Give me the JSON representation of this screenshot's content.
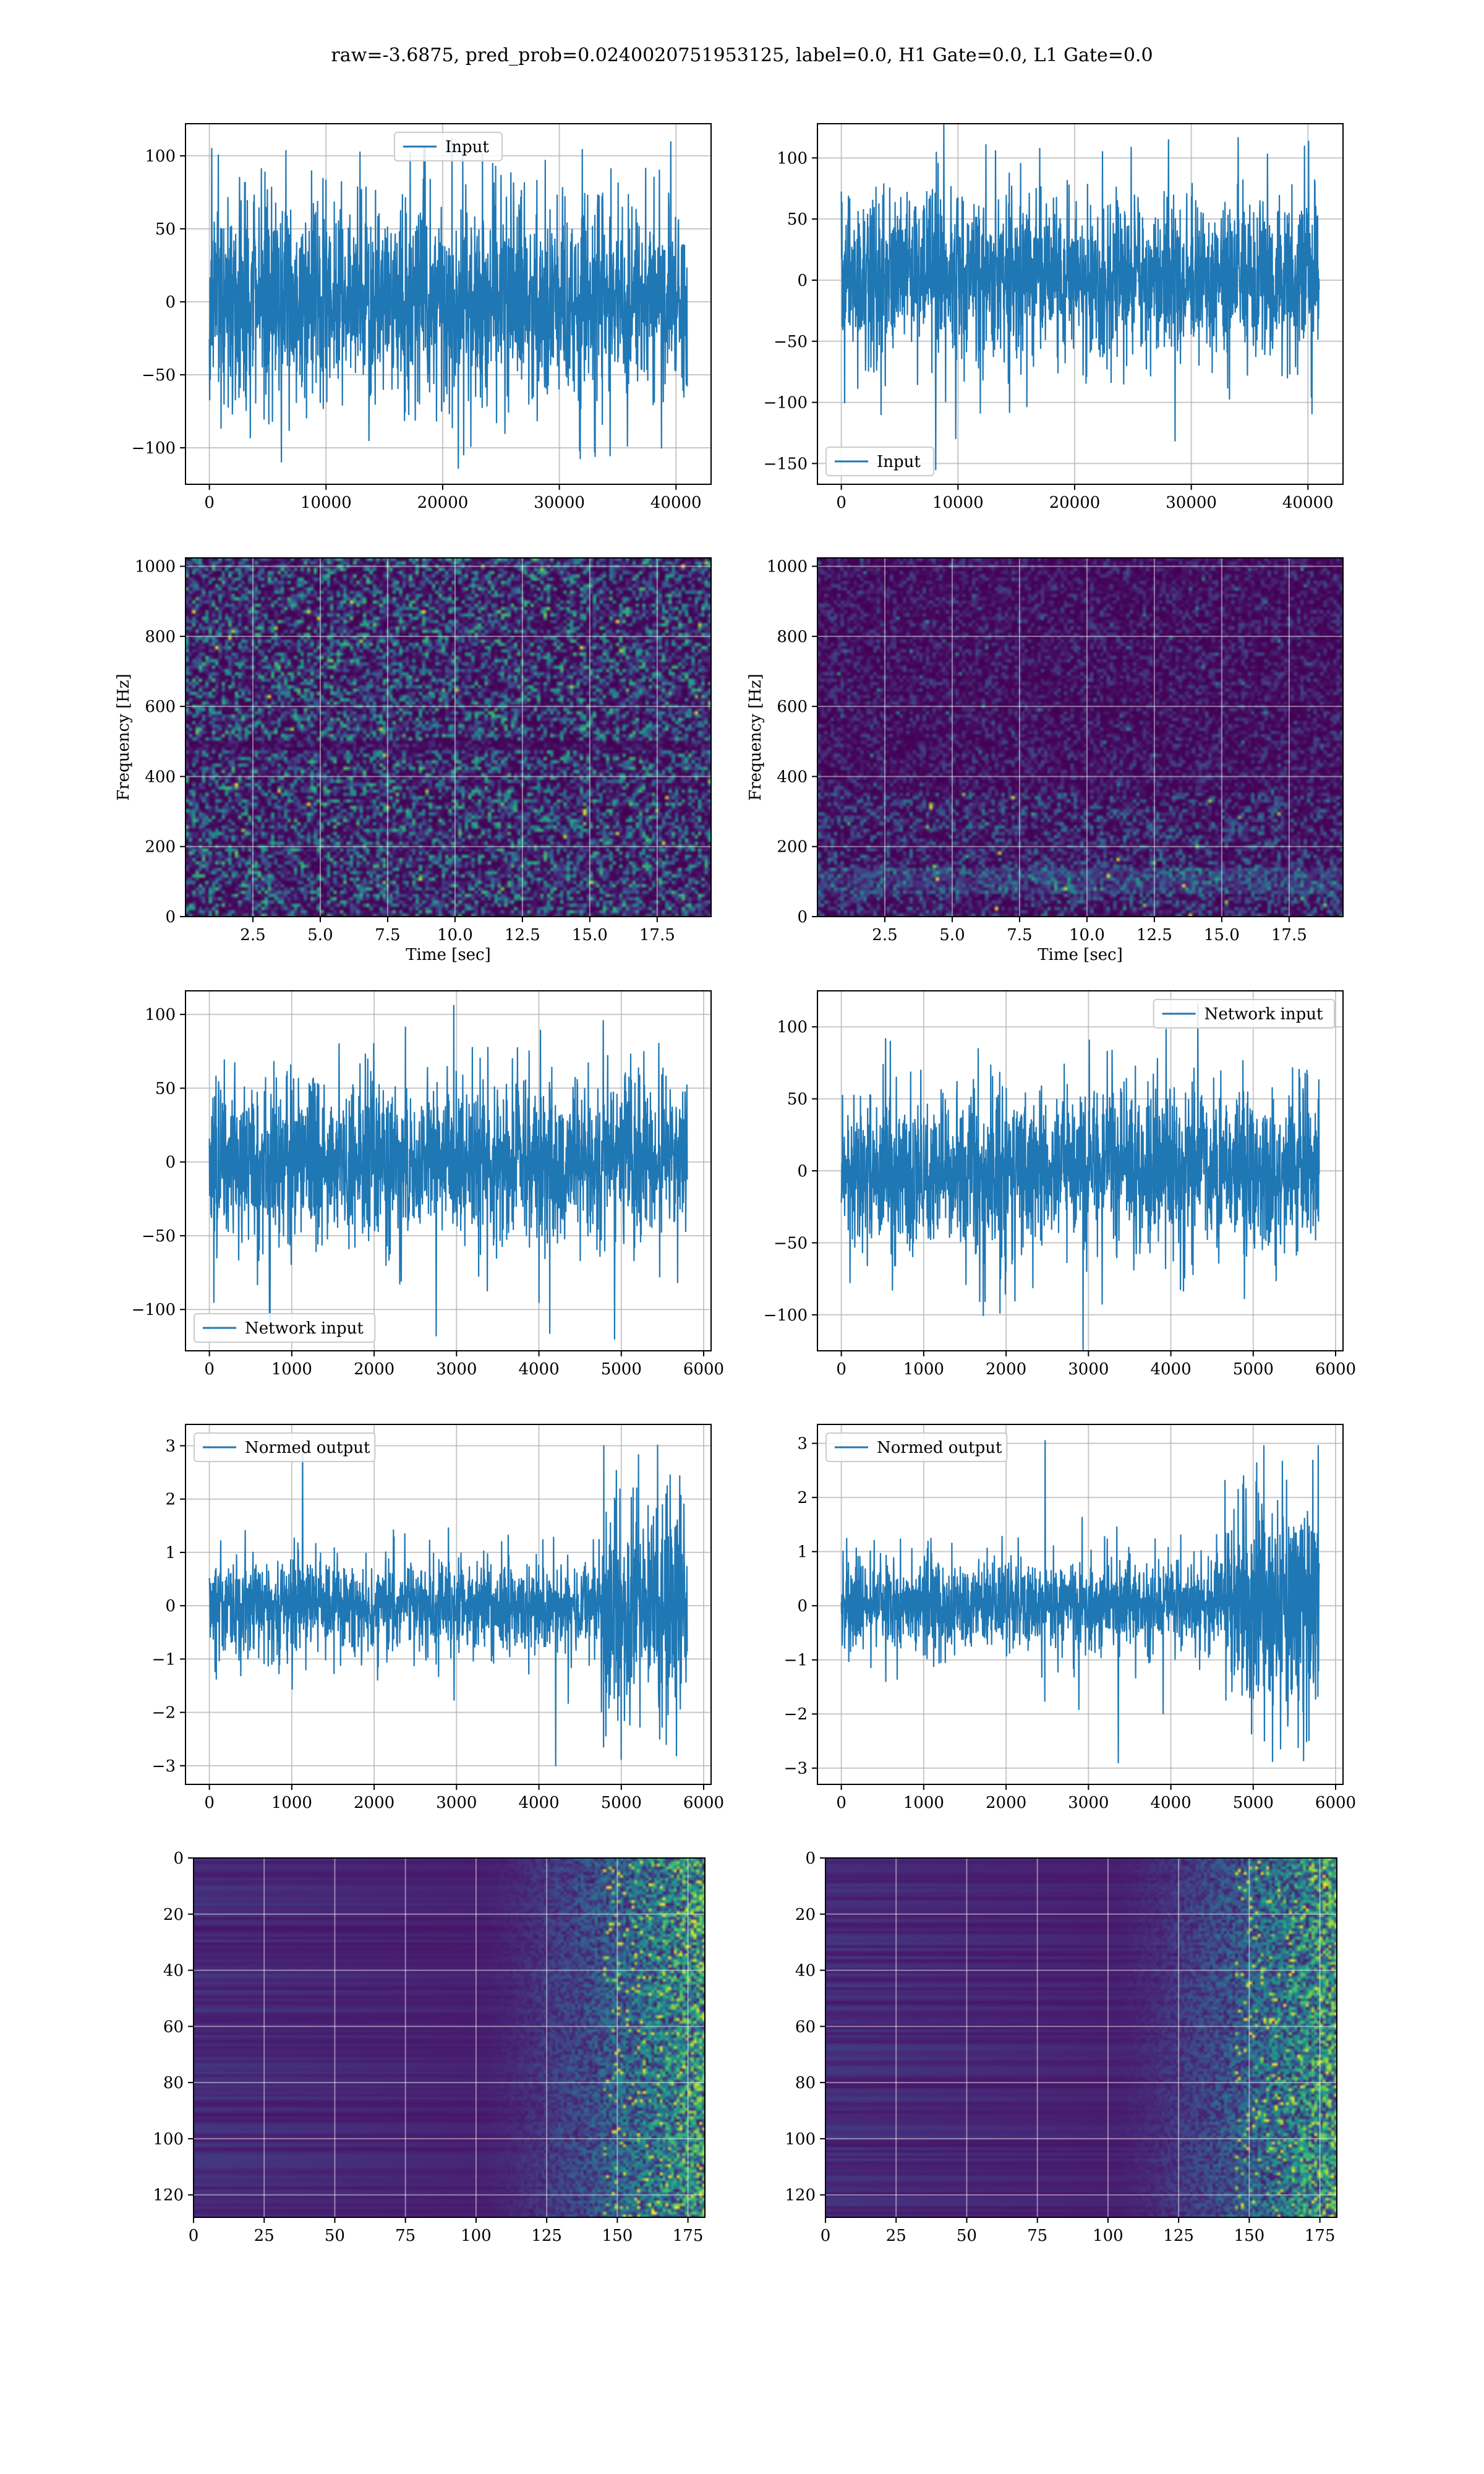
{
  "figure_title": "raw=-3.6875, pred_prob=0.0240020751953125, label=0.0, H1 Gate=0.0, L1 Gate=0.0",
  "colors": {
    "line": "#1f77b4",
    "grid": "#b0b0b0"
  },
  "chart_data": [
    {
      "id": "h1-input",
      "type": "line",
      "title": "",
      "xlabel": "",
      "ylabel": "",
      "xlim": [
        -2048,
        43008
      ],
      "ylim": [
        -125,
        122
      ],
      "xticks": [
        0,
        10000,
        20000,
        30000,
        40000
      ],
      "yticks": [
        -100,
        -50,
        0,
        50,
        100
      ],
      "series": [
        {
          "name": "Input",
          "n_samples": 40960,
          "x_range": [
            0,
            40960
          ],
          "spread": 38,
          "max": 112,
          "min": -114
        }
      ],
      "legend": "upper center",
      "grid": true
    },
    {
      "id": "l1-input",
      "type": "line",
      "title": "",
      "xlabel": "",
      "ylabel": "",
      "xlim": [
        -2048,
        43008
      ],
      "ylim": [
        -167,
        128
      ],
      "xticks": [
        0,
        10000,
        20000,
        30000,
        40000
      ],
      "yticks": [
        -150,
        -100,
        -50,
        0,
        50,
        100
      ],
      "series": [
        {
          "name": "Input",
          "n_samples": 40960,
          "x_range": [
            0,
            40960
          ],
          "spread": 36,
          "max": 127,
          "min": -155
        }
      ],
      "legend": "lower left",
      "grid": true
    },
    {
      "id": "h1-spectrogram",
      "type": "heatmap",
      "title": "",
      "xlabel": "Time [sec]",
      "ylabel": "Frequency [Hz]",
      "xlim": [
        0,
        19.5
      ],
      "ylim": [
        0,
        1024
      ],
      "xticks": [
        2.5,
        5.0,
        7.5,
        10.0,
        12.5,
        15.0,
        17.5
      ],
      "yticks": [
        0,
        200,
        400,
        600,
        800,
        1000
      ],
      "xticklabels": [
        "2.5",
        "5.0",
        "7.5",
        "10.0",
        "12.5",
        "15.0",
        "17.5"
      ],
      "colormap": "viridis",
      "grid": true
    },
    {
      "id": "l1-spectrogram",
      "type": "heatmap",
      "title": "",
      "xlabel": "Time [sec]",
      "ylabel": "Frequency [Hz]",
      "xlim": [
        0,
        19.5
      ],
      "ylim": [
        0,
        1024
      ],
      "xticks": [
        2.5,
        5.0,
        7.5,
        10.0,
        12.5,
        15.0,
        17.5
      ],
      "yticks": [
        0,
        200,
        400,
        600,
        800,
        1000
      ],
      "xticklabels": [
        "2.5",
        "5.0",
        "7.5",
        "10.0",
        "12.5",
        "15.0",
        "17.5"
      ],
      "colormap": "viridis",
      "grid": true
    },
    {
      "id": "h1-network-input",
      "type": "line",
      "title": "",
      "xlabel": "",
      "ylabel": "",
      "xlim": [
        -290,
        6090
      ],
      "ylim": [
        -128,
        116
      ],
      "xticks": [
        0,
        1000,
        2000,
        3000,
        4000,
        5000,
        6000
      ],
      "yticks": [
        -100,
        -50,
        0,
        50,
        100
      ],
      "series": [
        {
          "name": "Network input",
          "n_samples": 5800,
          "x_range": [
            0,
            5800
          ],
          "spread": 30,
          "max": 106,
          "min": -120
        }
      ],
      "legend": "lower left",
      "grid": true
    },
    {
      "id": "l1-network-input",
      "type": "line",
      "title": "",
      "xlabel": "",
      "ylabel": "",
      "xlim": [
        -290,
        6090
      ],
      "ylim": [
        -125,
        125
      ],
      "xticks": [
        0,
        1000,
        2000,
        3000,
        4000,
        5000,
        6000
      ],
      "yticks": [
        -100,
        -50,
        0,
        50,
        100
      ],
      "series": [
        {
          "name": "Network input",
          "n_samples": 5800,
          "x_range": [
            0,
            5800
          ],
          "spread": 30,
          "max": 116,
          "min": -124
        }
      ],
      "legend": "upper right",
      "grid": true
    },
    {
      "id": "h1-normed-output",
      "type": "line",
      "title": "",
      "xlabel": "",
      "ylabel": "",
      "xlim": [
        -290,
        6090
      ],
      "ylim": [
        -3.35,
        3.4
      ],
      "xticks": [
        0,
        1000,
        2000,
        3000,
        4000,
        5000,
        6000
      ],
      "yticks": [
        -3,
        -2,
        -1,
        0,
        1,
        2,
        3
      ],
      "series": [
        {
          "name": "Normed output",
          "n_samples": 5800,
          "x_range": [
            0,
            5800
          ],
          "spread": 0.45,
          "burst_start": 4750,
          "burst_spread": 1.15,
          "max": 3.1,
          "min": -3.0
        }
      ],
      "legend": "upper left",
      "grid": true
    },
    {
      "id": "l1-normed-output",
      "type": "line",
      "title": "",
      "xlabel": "",
      "ylabel": "",
      "xlim": [
        -290,
        6090
      ],
      "ylim": [
        -3.3,
        3.35
      ],
      "xticks": [
        0,
        1000,
        2000,
        3000,
        4000,
        5000,
        6000
      ],
      "yticks": [
        -3,
        -2,
        -1,
        0,
        1,
        2,
        3
      ],
      "series": [
        {
          "name": "Normed output",
          "n_samples": 5800,
          "x_range": [
            0,
            5800
          ],
          "spread": 0.45,
          "burst_start": 4650,
          "burst_spread": 1.1,
          "max": 3.05,
          "min": -2.9
        }
      ],
      "legend": "upper left",
      "grid": true
    },
    {
      "id": "h1-feature-map",
      "type": "heatmap",
      "title": "",
      "xlabel": "",
      "ylabel": "",
      "xlim": [
        0,
        181
      ],
      "ylim": [
        128,
        0
      ],
      "xticks": [
        0,
        25,
        50,
        75,
        100,
        125,
        150,
        175
      ],
      "yticks": [
        0,
        20,
        40,
        60,
        80,
        100,
        120
      ],
      "colormap": "viridis",
      "grid": true
    },
    {
      "id": "l1-feature-map",
      "type": "heatmap",
      "title": "",
      "xlabel": "",
      "ylabel": "",
      "xlim": [
        0,
        181
      ],
      "ylim": [
        128,
        0
      ],
      "xticks": [
        0,
        25,
        50,
        75,
        100,
        125,
        150,
        175
      ],
      "yticks": [
        0,
        20,
        40,
        60,
        80,
        100,
        120
      ],
      "colormap": "viridis",
      "grid": true
    }
  ]
}
